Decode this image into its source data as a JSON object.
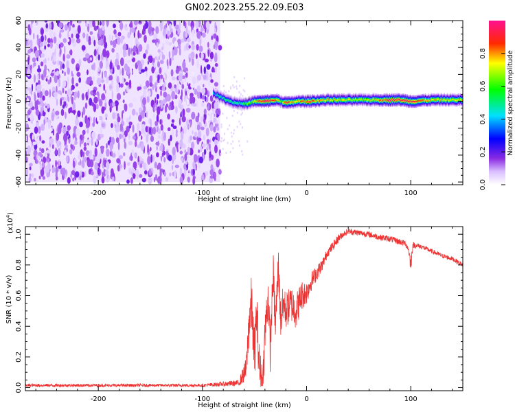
{
  "title": "GN02.2023.255.22.09.E03",
  "chart_data": [
    {
      "type": "heatmap",
      "xlabel": "Height of straight line (km)",
      "ylabel": "Frequency (Hz)",
      "xlim": [
        -270,
        150
      ],
      "ylim": [
        -62,
        60
      ],
      "x_ticks": [
        -200,
        -100,
        0,
        100
      ],
      "x_tick_labels": [
        "-200",
        "-100",
        "0",
        "100"
      ],
      "y_ticks": [
        60,
        40,
        20,
        0,
        -20,
        -40,
        -60
      ],
      "y_tick_labels": [
        "60",
        "40",
        "20",
        "0",
        "-20",
        "-40",
        "-60"
      ],
      "colorbar": {
        "label": "Normalized spectral amplitude",
        "range": [
          0,
          1
        ],
        "ticks": [
          0.0,
          0.2,
          0.4,
          0.6,
          0.8
        ],
        "tick_labels": [
          "0.0",
          "0.2",
          "0.4",
          "0.6",
          "0.8"
        ],
        "colormap": "rainbow (white-violet-blue-cyan-green-yellow-red-magenta)"
      },
      "noise_region": {
        "x_range": [
          -270,
          -83
        ],
        "freq_range": [
          -60,
          60
        ],
        "amplitude_range": [
          0.0,
          0.12
        ]
      },
      "signal_ridge": {
        "x": [
          -90,
          -80,
          -70,
          -60,
          -50,
          -40,
          -30,
          -25,
          -20,
          -15,
          -10,
          0,
          20,
          40,
          60,
          70,
          80,
          90,
          100,
          120,
          150
        ],
        "freq": [
          6,
          2,
          -1,
          -2,
          0,
          0,
          1,
          0,
          -1,
          -1,
          0,
          0,
          1,
          1,
          1,
          1,
          1,
          1,
          0,
          1,
          1
        ],
        "peak_amplitude": [
          0.4,
          0.5,
          0.5,
          0.55,
          0.7,
          1.0,
          0.85,
          0.6,
          0.9,
          0.8,
          0.75,
          0.85,
          0.75,
          0.7,
          0.7,
          0.8,
          0.95,
          0.9,
          0.9,
          0.75,
          0.7
        ]
      }
    },
    {
      "type": "line",
      "xlabel": "Height of straight line (km)",
      "ylabel": "SNR (10 * v/v)",
      "multiplier_label": "(x10",
      "multiplier_exp": "4",
      "multiplier_close": ")",
      "xlim": [
        -270,
        150
      ],
      "ylim": [
        -0.02,
        1.05
      ],
      "x_ticks": [
        -200,
        -100,
        0,
        100
      ],
      "x_tick_labels": [
        "-200",
        "-100",
        "0",
        "100"
      ],
      "y_ticks": [
        0.0,
        0.2,
        0.4,
        0.6,
        0.8,
        1.0
      ],
      "y_tick_labels": [
        "0.0",
        "0.2",
        "0.4",
        "0.6",
        "0.8",
        "1.0"
      ],
      "series": [
        {
          "color": "#ee3333",
          "x": [
            -270,
            -200,
            -100,
            -65,
            -58,
            -55,
            -53,
            -50,
            -48,
            -45,
            -42,
            -40,
            -37,
            -35,
            -32,
            -30,
            -27,
            -25,
            -22,
            -20,
            -15,
            -10,
            -5,
            0,
            5,
            10,
            15,
            20,
            25,
            30,
            35,
            40,
            50,
            60,
            70,
            80,
            90,
            95,
            98,
            100,
            102,
            110,
            120,
            130,
            140,
            150
          ],
          "y": [
            0.015,
            0.015,
            0.015,
            0.03,
            0.12,
            0.45,
            0.55,
            0.2,
            0.5,
            0.1,
            0.05,
            0.35,
            0.6,
            0.25,
            0.75,
            0.4,
            0.8,
            0.45,
            0.55,
            0.5,
            0.55,
            0.5,
            0.6,
            0.62,
            0.7,
            0.75,
            0.8,
            0.88,
            0.92,
            0.97,
            1.0,
            1.02,
            1.01,
            1.0,
            0.98,
            0.97,
            0.95,
            0.94,
            0.9,
            0.8,
            0.93,
            0.92,
            0.89,
            0.86,
            0.84,
            0.8
          ],
          "noise_amplitude": [
            0.01,
            0.01,
            0.01,
            0.02,
            0.08,
            0.18,
            0.18,
            0.18,
            0.18,
            0.15,
            0.1,
            0.15,
            0.15,
            0.15,
            0.12,
            0.15,
            0.12,
            0.15,
            0.12,
            0.12,
            0.12,
            0.12,
            0.1,
            0.08,
            0.06,
            0.05,
            0.04,
            0.03,
            0.03,
            0.03,
            0.02,
            0.02,
            0.02,
            0.02,
            0.02,
            0.02,
            0.02,
            0.02,
            0.02,
            0.06,
            0.02,
            0.015,
            0.015,
            0.015,
            0.015,
            0.015
          ]
        }
      ]
    }
  ]
}
